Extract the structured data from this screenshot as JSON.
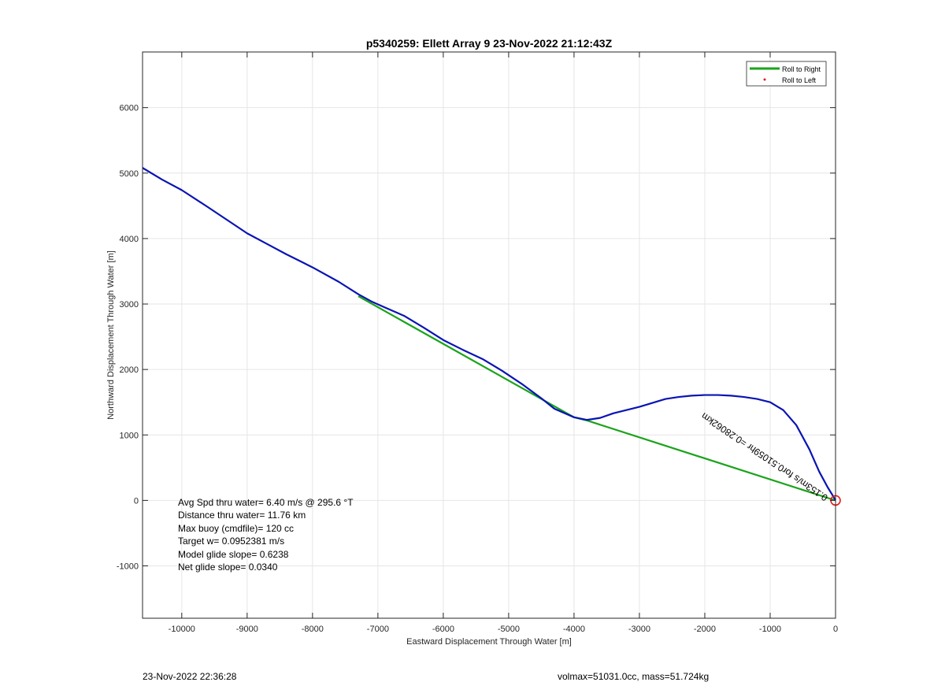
{
  "footer": {
    "left": "23-Nov-2022 22:36:28",
    "right": "volmax=51031.0cc, mass=51.724kg"
  },
  "colors": {
    "track": "#0a14b4",
    "roll_right": "#1aa31a",
    "roll_left": "#e41a1a",
    "marker": "#e41a1a"
  },
  "chart_data": {
    "type": "line",
    "title": "p5340259: Ellett Array 9 23-Nov-2022 21:12:43Z",
    "xlabel": "Eastward Displacement Through Water [m]",
    "ylabel": "Northward Displacement Through Water [m]",
    "xlim": [
      -10600,
      0
    ],
    "ylim": [
      -1800,
      6850
    ],
    "xticks": [
      -10000,
      -9000,
      -8000,
      -7000,
      -6000,
      -5000,
      -4000,
      -3000,
      -2000,
      -1000,
      0
    ],
    "yticks": [
      -1000,
      0,
      1000,
      2000,
      3000,
      4000,
      5000,
      6000
    ],
    "grid": true,
    "legend": {
      "placement": "top-right",
      "entries": [
        "Roll to Right",
        "Roll to Left"
      ]
    },
    "series": [
      {
        "name": "Roll to Right",
        "x": [
          -7300,
          -4000,
          -3800,
          0
        ],
        "y": [
          3120,
          1270,
          1220,
          0
        ]
      },
      {
        "name": "",
        "x": [
          -10600,
          -10300,
          -10000,
          -9600,
          -9300,
          -9000,
          -8700,
          -8400,
          -8000,
          -7600,
          -7300,
          -7100,
          -6900,
          -6600,
          -6300,
          -6000,
          -5700,
          -5400,
          -5100,
          -4800,
          -4500,
          -4300,
          -4000,
          -3800,
          -3600,
          -3400,
          -3200,
          -3000,
          -2800,
          -2600,
          -2400,
          -2200,
          -2000,
          -1800,
          -1600,
          -1400,
          -1200,
          -1000,
          -800,
          -600,
          -400,
          -250,
          -120,
          -40,
          0
        ],
        "y": [
          5080,
          4900,
          4740,
          4480,
          4280,
          4080,
          3920,
          3760,
          3560,
          3340,
          3150,
          3040,
          2950,
          2820,
          2640,
          2450,
          2300,
          2160,
          1980,
          1780,
          1560,
          1400,
          1270,
          1230,
          1260,
          1330,
          1380,
          1430,
          1490,
          1550,
          1580,
          1600,
          1610,
          1610,
          1600,
          1580,
          1550,
          1500,
          1380,
          1150,
          780,
          440,
          200,
          70,
          0
        ]
      }
    ],
    "annotations": {
      "stats": [
        "Avg Spd thru water=  6.40 m/s @ 295.6 °T",
        "Distance thru water= 11.76 km",
        "Max buoy (cmdfile)= 120 cc",
        "Target w= 0.0952381 m/s",
        "Model glide slope= 0.6238",
        "Net glide slope= 0.0340"
      ],
      "rotated_label": "0.153m/s for0.51059hr =0.28062km"
    },
    "marker": {
      "x": 0,
      "y": 0
    }
  }
}
